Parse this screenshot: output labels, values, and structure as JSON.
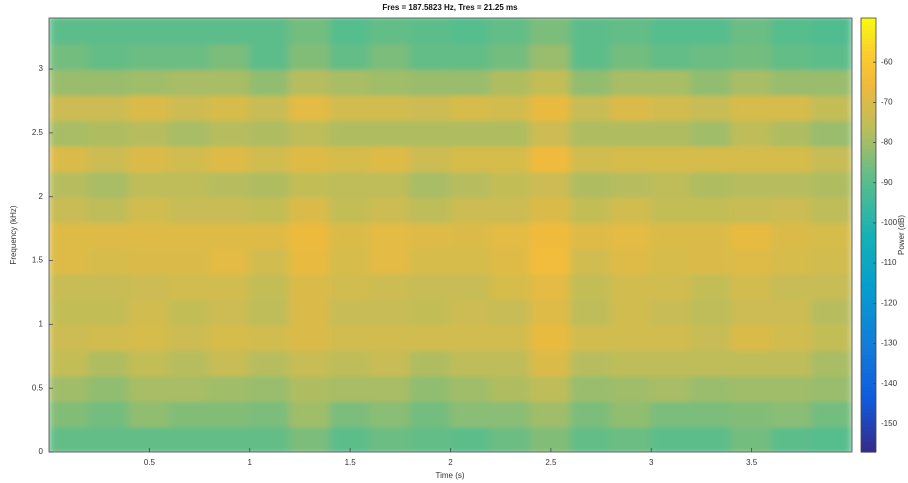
{
  "chart_data": {
    "type": "heatmap",
    "title": "Fres = 187.5823 Hz, Tres = 21.25 ms",
    "xlabel": "Time (s)",
    "ylabel": "Frequency (kHz)",
    "colorbar_label": "Power (dB)",
    "colormap": "parula",
    "x": [
      0.1,
      0.3,
      0.5,
      0.7,
      0.9,
      1.1,
      1.3,
      1.5,
      1.7,
      1.9,
      2.1,
      2.3,
      2.5,
      2.7,
      2.9,
      3.1,
      3.3,
      3.5,
      3.7,
      3.9
    ],
    "y": [
      0.1,
      0.3,
      0.5,
      0.7,
      0.9,
      1.1,
      1.3,
      1.5,
      1.7,
      1.9,
      2.1,
      2.3,
      2.5,
      2.7,
      2.9,
      3.1,
      3.3
    ],
    "z": [
      [
        -88,
        -88,
        -88,
        -88,
        -88,
        -88,
        -85,
        -89,
        -87,
        -88,
        -89,
        -87,
        -84,
        -88,
        -87,
        -89,
        -89,
        -86,
        -89,
        -90
      ],
      [
        -84,
        -86,
        -82,
        -84,
        -84,
        -85,
        -80,
        -85,
        -83,
        -86,
        -83,
        -83,
        -80,
        -85,
        -82,
        -85,
        -85,
        -84,
        -83,
        -86
      ],
      [
        -80,
        -82,
        -79,
        -79,
        -80,
        -81,
        -78,
        -79,
        -79,
        -82,
        -80,
        -78,
        -76,
        -81,
        -80,
        -79,
        -81,
        -80,
        -80,
        -81
      ],
      [
        -75,
        -78,
        -75,
        -77,
        -74,
        -77,
        -74,
        -76,
        -74,
        -78,
        -76,
        -76,
        -70,
        -77,
        -76,
        -76,
        -76,
        -76,
        -76,
        -79
      ],
      [
        -73,
        -72,
        -71,
        -73,
        -71,
        -72,
        -70,
        -72,
        -72,
        -72,
        -72,
        -72,
        -67,
        -72,
        -72,
        -72,
        -74,
        -70,
        -72,
        -75
      ],
      [
        -75,
        -75,
        -72,
        -75,
        -73,
        -76,
        -70,
        -74,
        -74,
        -75,
        -73,
        -74,
        -69,
        -76,
        -72,
        -74,
        -76,
        -73,
        -73,
        -77
      ],
      [
        -74,
        -74,
        -73,
        -72,
        -72,
        -75,
        -70,
        -72,
        -73,
        -74,
        -74,
        -71,
        -68,
        -75,
        -72,
        -72,
        -75,
        -72,
        -74,
        -74
      ],
      [
        -69,
        -71,
        -70,
        -70,
        -68,
        -72,
        -67,
        -71,
        -68,
        -71,
        -71,
        -69,
        -64,
        -72,
        -69,
        -71,
        -70,
        -69,
        -71,
        -72
      ],
      [
        -69,
        -69,
        -69,
        -69,
        -69,
        -69,
        -66,
        -70,
        -68,
        -69,
        -70,
        -68,
        -65,
        -69,
        -68,
        -70,
        -70,
        -67,
        -70,
        -71
      ],
      [
        -74,
        -76,
        -72,
        -74,
        -74,
        -75,
        -70,
        -75,
        -73,
        -76,
        -73,
        -73,
        -70,
        -75,
        -72,
        -75,
        -75,
        -74,
        -73,
        -76
      ],
      [
        -77,
        -79,
        -76,
        -76,
        -77,
        -78,
        -75,
        -76,
        -76,
        -79,
        -77,
        -75,
        -73,
        -78,
        -77,
        -76,
        -78,
        -77,
        -77,
        -78
      ],
      [
        -70,
        -73,
        -70,
        -72,
        -69,
        -72,
        -69,
        -71,
        -69,
        -73,
        -71,
        -71,
        -65,
        -72,
        -71,
        -71,
        -71,
        -71,
        -71,
        -74
      ],
      [
        -79,
        -78,
        -77,
        -79,
        -77,
        -78,
        -76,
        -78,
        -78,
        -78,
        -78,
        -78,
        -73,
        -78,
        -78,
        -78,
        -80,
        -76,
        -78,
        -81
      ],
      [
        -73,
        -73,
        -70,
        -73,
        -71,
        -74,
        -68,
        -72,
        -72,
        -73,
        -71,
        -72,
        -67,
        -74,
        -70,
        -72,
        -74,
        -71,
        -71,
        -75
      ],
      [
        -81,
        -81,
        -80,
        -79,
        -79,
        -82,
        -77,
        -79,
        -80,
        -81,
        -81,
        -78,
        -75,
        -82,
        -79,
        -79,
        -82,
        -79,
        -81,
        -81
      ],
      [
        -86,
        -88,
        -87,
        -87,
        -85,
        -89,
        -84,
        -88,
        -85,
        -88,
        -88,
        -86,
        -81,
        -89,
        -86,
        -88,
        -87,
        -86,
        -88,
        -89
      ],
      [
        -89,
        -89,
        -89,
        -89,
        -89,
        -89,
        -86,
        -90,
        -88,
        -89,
        -90,
        -88,
        -85,
        -89,
        -88,
        -90,
        -90,
        -87,
        -90,
        -91
      ]
    ],
    "xlim": [
      0,
      4
    ],
    "ylim": [
      0,
      3.4
    ],
    "clim": [
      -157,
      -49
    ],
    "xticks": [
      0.5,
      1,
      1.5,
      2,
      2.5,
      3,
      3.5
    ],
    "yticks": [
      0,
      0.5,
      1,
      1.5,
      2,
      2.5,
      3
    ],
    "cticks": [
      -60,
      -70,
      -80,
      -90,
      -100,
      -110,
      -120,
      -130,
      -140,
      -150
    ]
  }
}
